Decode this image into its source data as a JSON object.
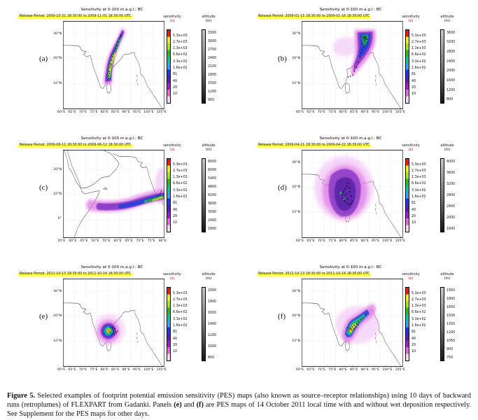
{
  "shared": {
    "sensitivity_label": "sensitivity",
    "sensitivity_unit": "(s)",
    "altitude_label": "altitude",
    "altitude_unit": "(m)",
    "sensitivity_ticks": [
      "5.3e+03",
      "2.7e+03",
      "1.3e+03",
      "6.6e+02",
      "3.3e+02",
      "1.6e+02",
      "81",
      "40",
      "20",
      "10"
    ],
    "release_highlight_color": "#ffff54",
    "sensitivity_colormap": [
      "#f6d9f6",
      "#e06ae0",
      "#a21fc4",
      "#5a1fae",
      "#2236dd",
      "#3fa0f0",
      "#17bfa0",
      "#2eb82e",
      "#a7e522",
      "#f2ee1f",
      "#e31d1d"
    ]
  },
  "panels": [
    {
      "letter": "(a)",
      "title": "Sensitivity at 0-100 m.a.g.l.: BC",
      "release": "Release Period: 2009-10-31 18:30:00 to 2009-11-01 18:30:00 UTC",
      "x_ticks": [
        "60°E",
        "65°E",
        "70°E",
        "75°E",
        "80°E",
        "85°E",
        "90°E",
        "95°E",
        "100°E",
        "105°E"
      ],
      "y_ticks": [
        "30°N",
        "20°N",
        "10°N"
      ],
      "altitude_ticks": [
        "3300",
        "3000",
        "2700",
        "2400",
        "2100",
        "1800",
        "1500",
        "1200",
        "900"
      ]
    },
    {
      "letter": "(b)",
      "title": "Sensitivity at 0-100 m.a.g.l.: BC",
      "release": "Release Period: 2009-01-15 18:30:00 to 2009-01-16 18:30:00 UTC",
      "x_ticks": [
        "60°E",
        "65°E",
        "70°E",
        "75°E",
        "80°E",
        "85°E",
        "90°E",
        "95°E",
        "100°E",
        "105°E"
      ],
      "y_ticks": [
        "30°N",
        "20°N",
        "10°N"
      ],
      "altitude_ticks": [
        "3600",
        "3200",
        "2800",
        "2400",
        "2000",
        "1600",
        "1200",
        "800"
      ]
    },
    {
      "letter": "(c)",
      "title": "Sensitivity at 0-100 m.a.g.l.: BC",
      "release": "Release Period: 2009-06-11 18:30:00 to 2009-06-12 18:30:00 UTC",
      "x_ticks": [
        "35°E",
        "40°E",
        "45°E",
        "50°E",
        "55°E",
        "60°E",
        "65°E",
        "70°E",
        "75°E",
        "80°E"
      ],
      "y_ticks": [
        "20°N",
        "10°N",
        "0°"
      ],
      "altitude_ticks": [
        "6600",
        "6000",
        "5400",
        "4800",
        "4200",
        "3600",
        "3000",
        "2400",
        "1800"
      ]
    },
    {
      "letter": "(d)",
      "title": "Sensitivity at 0-100 m.a.g.l.: BC",
      "release": "Release Period: 2009-04-21 18:30:00 to 2009-04-22 18:30:00 UTC",
      "x_ticks": [
        "60°E",
        "65°E",
        "70°E",
        "75°E",
        "80°E",
        "85°E",
        "90°E",
        "95°E",
        "100°E",
        "105°E"
      ],
      "y_ticks": [
        "30°N",
        "20°N",
        "10°N"
      ],
      "altitude_ticks": [
        "4000",
        "3600",
        "3200",
        "2800",
        "2400",
        "2000",
        "1600"
      ]
    },
    {
      "letter": "(e)",
      "title": "Sensitivity at 0-100 m.a.g.l.: BC",
      "release": "Release Period: 2011-10-13 18:30:00 to 2011-10-14 18:30:00 UTC",
      "x_ticks": [
        "60°E",
        "65°E",
        "70°E",
        "75°E",
        "80°E",
        "85°E",
        "90°E",
        "95°E",
        "100°E",
        "105°E"
      ],
      "y_ticks": [
        "30°N",
        "20°N",
        "10°N"
      ],
      "altitude_ticks": [
        "2000",
        "1800",
        "1600",
        "1400",
        "1200",
        "1000",
        "800"
      ]
    },
    {
      "letter": "(f)",
      "title": "Sensitivity at 0-100 m.a.g.l.: BC",
      "release": "Release Period: 2011-10-13 18:30:00 to 2011-10-14 18:30:00 UTC",
      "x_ticks": [
        "60°E",
        "65°E",
        "70°E",
        "75°E",
        "80°E",
        "85°E",
        "90°E",
        "95°E",
        "100°E",
        "105°E"
      ],
      "y_ticks": [
        "30°N",
        "20°N",
        "10°N"
      ],
      "altitude_ticks": [
        "1950",
        "1800",
        "1650",
        "1500",
        "1350",
        "1200",
        "1050",
        "900",
        "750"
      ]
    }
  ],
  "caption": {
    "label": "Figure 5.",
    "part1": " Selected examples of footprint potential emission sensitivity (PES) maps (also known as source–receptor relationships) using 10 days of backward runs (retroplumes) of FLEXPART from Gadanki. Panels ",
    "bold_e": "(e)",
    "part2": " and ",
    "bold_f": "(f)",
    "part3": " are PES maps of 14 October 2011 local time with and without wet deposition respectively. See Supplement for the PES maps for other days."
  }
}
